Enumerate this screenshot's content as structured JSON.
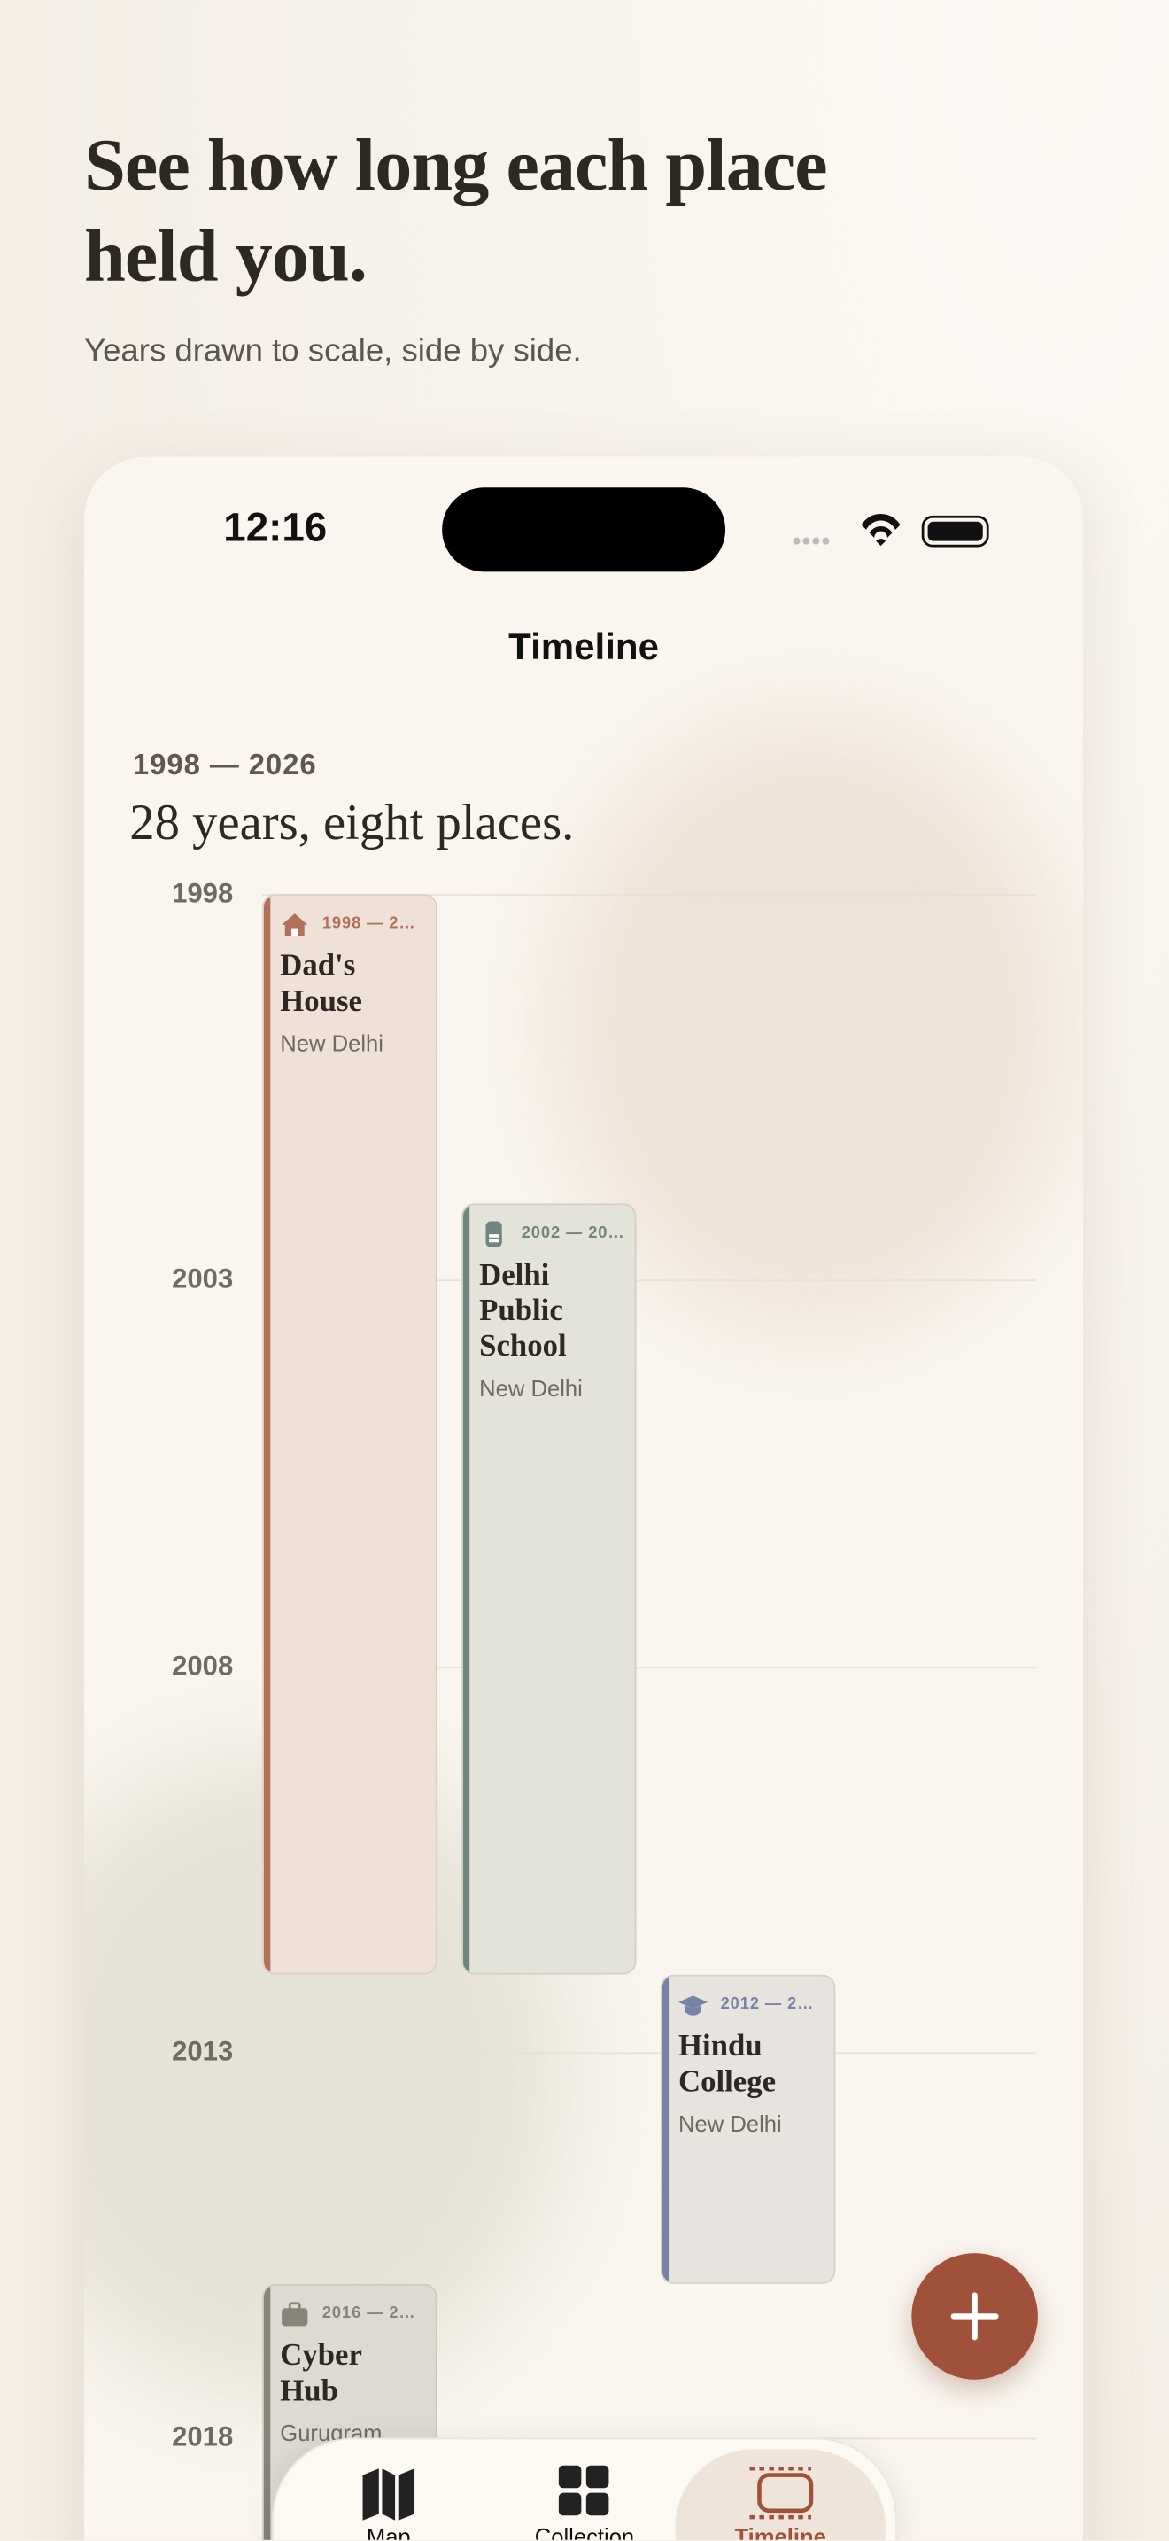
{
  "header": {
    "title": "See how long each place held you.",
    "subtitle": "Years drawn to scale, side by side."
  },
  "status_bar": {
    "time": "12:16"
  },
  "screen_title": "Timeline",
  "summary": {
    "range": "1998 — 2026",
    "headline": "28 years, eight places."
  },
  "timeline": {
    "ylim": [
      1998,
      2018
    ],
    "years": [
      1998,
      2003,
      2008,
      2013,
      2018
    ],
    "places": [
      {
        "dates": "1998 — 2…",
        "name": "Dad's House",
        "city": "New Delhi",
        "start": 1998,
        "end": 2012,
        "color": "#b0705a",
        "fill": "#efe1d6"
      },
      {
        "dates": "2002 — 20…",
        "name": "Delhi Public School",
        "city": "New Delhi",
        "start": 2002,
        "end": 2012,
        "color": "#6f877e",
        "fill": "#e4e3da"
      },
      {
        "dates": "2012 — 2…",
        "name": "Hindu College",
        "city": "New Delhi",
        "start": 2012,
        "end": 2016,
        "color": "#7783a6",
        "fill": "#e7e3df"
      },
      {
        "dates": "2016 — 2…",
        "name": "Cyber Hub",
        "city": "Gurugram",
        "start": 2016,
        "color": "#86857a",
        "fill": "#dcdad1"
      }
    ]
  },
  "tabs": [
    "Map",
    "Collection",
    "Timeline"
  ]
}
